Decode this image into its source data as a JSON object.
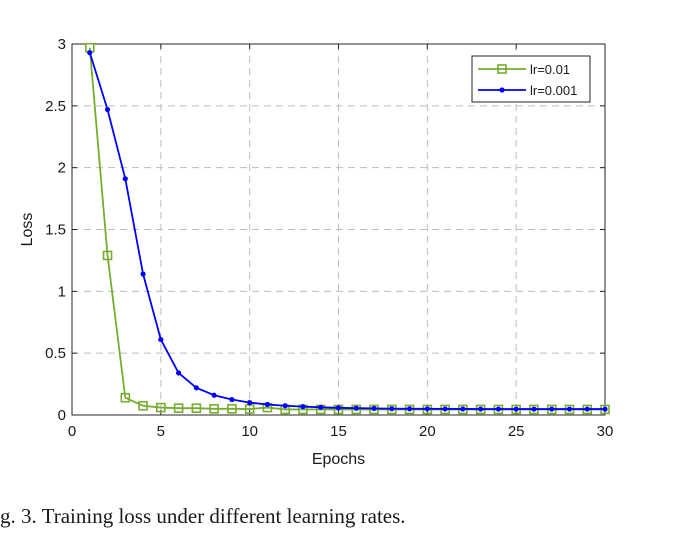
{
  "caption": "g. 3. Training loss under different learning rates.",
  "chart_data": {
    "type": "line",
    "title": "",
    "xlabel": "Epochs",
    "ylabel": "Loss",
    "xlim": [
      0,
      30
    ],
    "ylim": [
      0,
      3
    ],
    "xticks": [
      0,
      5,
      10,
      15,
      20,
      25,
      30
    ],
    "yticks": [
      0,
      0.5,
      1,
      1.5,
      2,
      2.5,
      3
    ],
    "xtick_labels": [
      "0",
      "5",
      "10",
      "15",
      "20",
      "25",
      "30"
    ],
    "ytick_labels": [
      "0",
      "0.5",
      "1",
      "1.5",
      "2",
      "2.5",
      "3"
    ],
    "grid": true,
    "legend_position": "top-right",
    "series": [
      {
        "name": "lr=0.01",
        "color": "#77ac30",
        "marker": "square",
        "x": [
          1,
          2,
          3,
          4,
          5,
          6,
          7,
          8,
          9,
          10,
          11,
          12,
          13,
          14,
          15,
          16,
          17,
          18,
          19,
          20,
          21,
          22,
          23,
          24,
          25,
          26,
          27,
          28,
          29,
          30
        ],
        "values": [
          2.97,
          1.29,
          0.14,
          0.075,
          0.06,
          0.055,
          0.055,
          0.05,
          0.05,
          0.048,
          0.06,
          0.045,
          0.045,
          0.045,
          0.045,
          0.045,
          0.045,
          0.045,
          0.045,
          0.045,
          0.045,
          0.045,
          0.045,
          0.045,
          0.045,
          0.045,
          0.045,
          0.045,
          0.045,
          0.045
        ]
      },
      {
        "name": "lr=0.001",
        "color": "#0000ff",
        "marker": "dot",
        "x": [
          1,
          2,
          3,
          4,
          5,
          6,
          7,
          8,
          9,
          10,
          11,
          12,
          13,
          14,
          15,
          16,
          17,
          18,
          19,
          20,
          21,
          22,
          23,
          24,
          25,
          26,
          27,
          28,
          29,
          30
        ],
        "values": [
          2.93,
          2.47,
          1.91,
          1.14,
          0.61,
          0.34,
          0.22,
          0.16,
          0.125,
          0.1,
          0.085,
          0.075,
          0.068,
          0.062,
          0.058,
          0.055,
          0.053,
          0.051,
          0.05,
          0.05,
          0.049,
          0.049,
          0.048,
          0.048,
          0.048,
          0.048,
          0.048,
          0.048,
          0.048,
          0.048
        ]
      }
    ]
  }
}
